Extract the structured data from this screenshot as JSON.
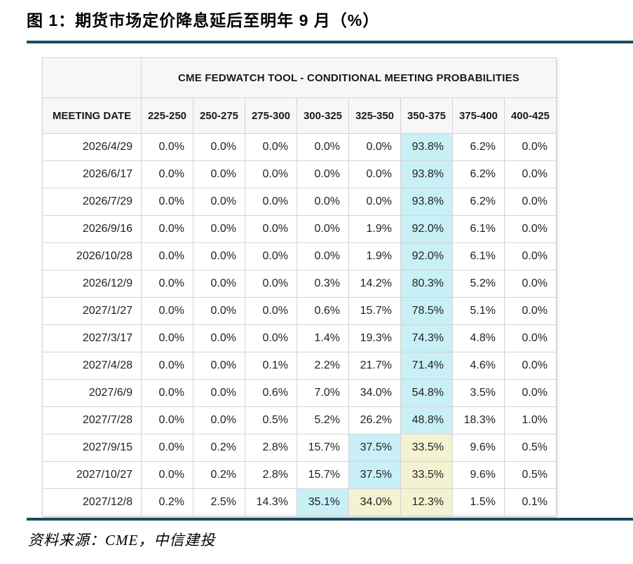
{
  "figure": {
    "title": "图 1：期货市场定价降息延后至明年 9 月（%）",
    "source": "资料来源：CME，中信建投"
  },
  "colors": {
    "rule_blue": "#1b4a63",
    "header_bg": "#f7f7f7",
    "highlight_cyan": "#c9eff7",
    "highlight_yellow": "#f5f2d2",
    "grid_border": "#d4d4d4"
  },
  "chart_data": {
    "type": "table",
    "title": "CME FEDWATCH TOOL - CONDITIONAL MEETING PROBABILITIES",
    "columns": [
      "MEETING DATE",
      "225-250",
      "250-275",
      "275-300",
      "300-325",
      "325-350",
      "350-375",
      "375-400",
      "400-425"
    ],
    "rows": [
      {
        "date": "2026/4/29",
        "values": [
          "0.0%",
          "0.0%",
          "0.0%",
          "0.0%",
          "0.0%",
          "93.8%",
          "6.2%",
          "0.0%"
        ],
        "marks": [
          "",
          "",
          "",
          "",
          "",
          "cyan",
          "",
          ""
        ]
      },
      {
        "date": "2026/6/17",
        "values": [
          "0.0%",
          "0.0%",
          "0.0%",
          "0.0%",
          "0.0%",
          "93.8%",
          "6.2%",
          "0.0%"
        ],
        "marks": [
          "",
          "",
          "",
          "",
          "",
          "cyan",
          "",
          ""
        ]
      },
      {
        "date": "2026/7/29",
        "values": [
          "0.0%",
          "0.0%",
          "0.0%",
          "0.0%",
          "0.0%",
          "93.8%",
          "6.2%",
          "0.0%"
        ],
        "marks": [
          "",
          "",
          "",
          "",
          "",
          "cyan",
          "",
          ""
        ]
      },
      {
        "date": "2026/9/16",
        "values": [
          "0.0%",
          "0.0%",
          "0.0%",
          "0.0%",
          "1.9%",
          "92.0%",
          "6.1%",
          "0.0%"
        ],
        "marks": [
          "",
          "",
          "",
          "",
          "",
          "cyan",
          "",
          ""
        ]
      },
      {
        "date": "2026/10/28",
        "values": [
          "0.0%",
          "0.0%",
          "0.0%",
          "0.0%",
          "1.9%",
          "92.0%",
          "6.1%",
          "0.0%"
        ],
        "marks": [
          "",
          "",
          "",
          "",
          "",
          "cyan",
          "",
          ""
        ]
      },
      {
        "date": "2026/12/9",
        "values": [
          "0.0%",
          "0.0%",
          "0.0%",
          "0.3%",
          "14.2%",
          "80.3%",
          "5.2%",
          "0.0%"
        ],
        "marks": [
          "",
          "",
          "",
          "",
          "",
          "cyan",
          "",
          ""
        ]
      },
      {
        "date": "2027/1/27",
        "values": [
          "0.0%",
          "0.0%",
          "0.0%",
          "0.6%",
          "15.7%",
          "78.5%",
          "5.1%",
          "0.0%"
        ],
        "marks": [
          "",
          "",
          "",
          "",
          "",
          "cyan",
          "",
          ""
        ]
      },
      {
        "date": "2027/3/17",
        "values": [
          "0.0%",
          "0.0%",
          "0.0%",
          "1.4%",
          "19.3%",
          "74.3%",
          "4.8%",
          "0.0%"
        ],
        "marks": [
          "",
          "",
          "",
          "",
          "",
          "cyan",
          "",
          ""
        ]
      },
      {
        "date": "2027/4/28",
        "values": [
          "0.0%",
          "0.0%",
          "0.1%",
          "2.2%",
          "21.7%",
          "71.4%",
          "4.6%",
          "0.0%"
        ],
        "marks": [
          "",
          "",
          "",
          "",
          "",
          "cyan",
          "",
          ""
        ]
      },
      {
        "date": "2027/6/9",
        "values": [
          "0.0%",
          "0.0%",
          "0.6%",
          "7.0%",
          "34.0%",
          "54.8%",
          "3.5%",
          "0.0%"
        ],
        "marks": [
          "",
          "",
          "",
          "",
          "",
          "cyan",
          "",
          ""
        ]
      },
      {
        "date": "2027/7/28",
        "values": [
          "0.0%",
          "0.0%",
          "0.5%",
          "5.2%",
          "26.2%",
          "48.8%",
          "18.3%",
          "1.0%"
        ],
        "marks": [
          "",
          "",
          "",
          "",
          "",
          "cyan",
          "",
          ""
        ]
      },
      {
        "date": "2027/9/15",
        "values": [
          "0.0%",
          "0.2%",
          "2.8%",
          "15.7%",
          "37.5%",
          "33.5%",
          "9.6%",
          "0.5%"
        ],
        "marks": [
          "",
          "",
          "",
          "",
          "cyan",
          "yellow",
          "",
          ""
        ]
      },
      {
        "date": "2027/10/27",
        "values": [
          "0.0%",
          "0.2%",
          "2.8%",
          "15.7%",
          "37.5%",
          "33.5%",
          "9.6%",
          "0.5%"
        ],
        "marks": [
          "",
          "",
          "",
          "",
          "cyan",
          "yellow",
          "",
          ""
        ]
      },
      {
        "date": "2027/12/8",
        "values": [
          "0.2%",
          "2.5%",
          "14.3%",
          "35.1%",
          "34.0%",
          "12.3%",
          "1.5%",
          "0.1%"
        ],
        "marks": [
          "",
          "",
          "",
          "cyan",
          "yellow",
          "yellow",
          "",
          ""
        ]
      }
    ]
  }
}
